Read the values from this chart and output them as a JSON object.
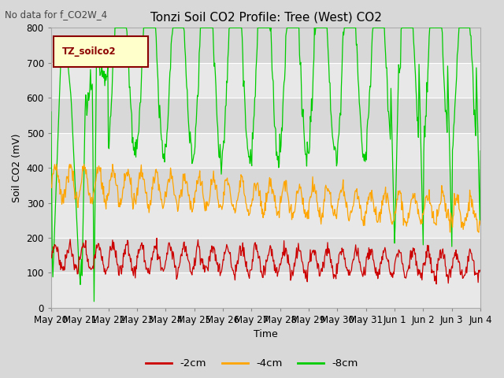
{
  "title": "Tonzi Soil CO2 Profile: Tree (West) CO2",
  "top_left_text": "No data for f_CO2W_4",
  "legend_box_label": "TZ_soilco2",
  "ylabel": "Soil CO2 (mV)",
  "xlabel": "Time",
  "ylim": [
    0,
    800
  ],
  "yticks": [
    0,
    100,
    200,
    300,
    400,
    500,
    600,
    700,
    800
  ],
  "xtick_labels": [
    "May 20",
    "May 21",
    "May 22",
    "May 23",
    "May 24",
    "May 25",
    "May 26",
    "May 27",
    "May 28",
    "May 29",
    "May 30",
    "May 31",
    "Jun 1",
    "Jun 2",
    "Jun 3",
    "Jun 4"
  ],
  "line_2cm_color": "#cc0000",
  "line_4cm_color": "#ffa500",
  "line_8cm_color": "#00cc00",
  "legend_2cm": "-2cm",
  "legend_4cm": "-4cm",
  "legend_8cm": "-8cm",
  "fig_bg_color": "#d8d8d8",
  "plot_bg_light": "#e8e8e8",
  "plot_bg_dark": "#d8d8d8",
  "grid_color": "#c0c0c0",
  "title_fontsize": 11,
  "label_fontsize": 9,
  "tick_fontsize": 8.5
}
